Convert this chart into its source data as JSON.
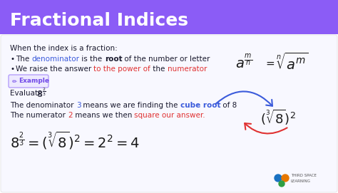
{
  "title": "Fractional Indices",
  "title_bg": "#8B5CF6",
  "title_color": "#ffffff",
  "bg_color": "#ffffff",
  "body_text_color": "#1a1a2e",
  "blue_color": "#3B5BDB",
  "red_color": "#E03131",
  "purple_color": "#7048e8",
  "green_color": "#2f9e44",
  "orange_color": "#e67700",
  "bullet1_plain": "The ",
  "bullet1_blue": "denominator",
  "bullet1_bold": " is the ",
  "bullet1_bold2": "root",
  "bullet1_rest": " of the number or letter",
  "bullet2_plain": "We raise the answer ",
  "bullet2_red": "to the power of",
  "bullet2_rest": " the ",
  "bullet2_red2": "numerator",
  "example_label": "Example",
  "evaluate_text": "Evaluate ",
  "denom_text": "The denominator ",
  "denom_num": "3",
  "denom_rest": " means we are finding the ",
  "denom_bold_blue": "cube root",
  "denom_end": " of 8",
  "numer_text": "The numerator ",
  "numer_num": "2",
  "numer_rest": " means we then ",
  "numer_red": "square our answer.",
  "tsl_text1": "THIRD SPACE",
  "tsl_text2": "LEARNING"
}
